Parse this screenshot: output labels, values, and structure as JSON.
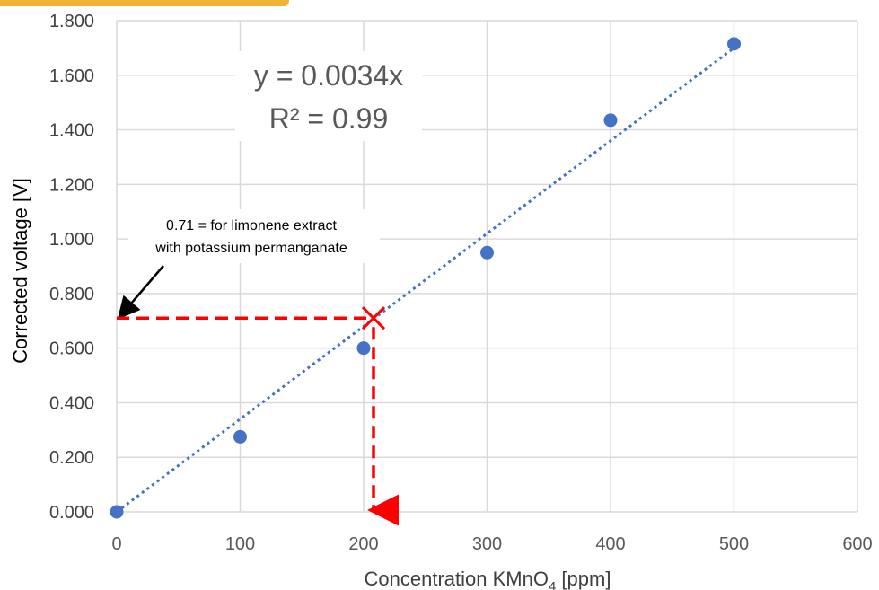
{
  "chart_data": {
    "type": "scatter",
    "xlabel_main": "Concentration KMnO",
    "xlabel_sub": "4",
    "xlabel_unit": "[ppm]",
    "ylabel": "Corrected voltage [V]",
    "xlim": [
      0,
      600
    ],
    "ylim": [
      0,
      1.8
    ],
    "x_ticks": [
      "0",
      "100",
      "200",
      "300",
      "400",
      "500",
      "600"
    ],
    "y_ticks": [
      "0.000",
      "0.200",
      "0.400",
      "0.600",
      "0.800",
      "1.000",
      "1.200",
      "1.400",
      "1.600",
      "1.800"
    ],
    "grid": true,
    "series": [
      {
        "x": [
          0,
          100,
          200,
          300,
          400,
          500
        ],
        "y": [
          0.0,
          0.275,
          0.6,
          0.95,
          1.435,
          1.715
        ],
        "color": "#4472c4"
      }
    ],
    "trendline": {
      "slope": 0.0034,
      "x_range": [
        0,
        500
      ],
      "style": "dotted",
      "color": "#4472c4"
    },
    "equation": "y = 0.0034x",
    "r_squared": "R² = 0.99",
    "annotation": {
      "lines": [
        "0.71 = for limonene extract",
        "with potassium permanganate"
      ],
      "marker_point": {
        "x": 208,
        "y": 0.71
      },
      "marker_color": "#ff0000"
    }
  }
}
